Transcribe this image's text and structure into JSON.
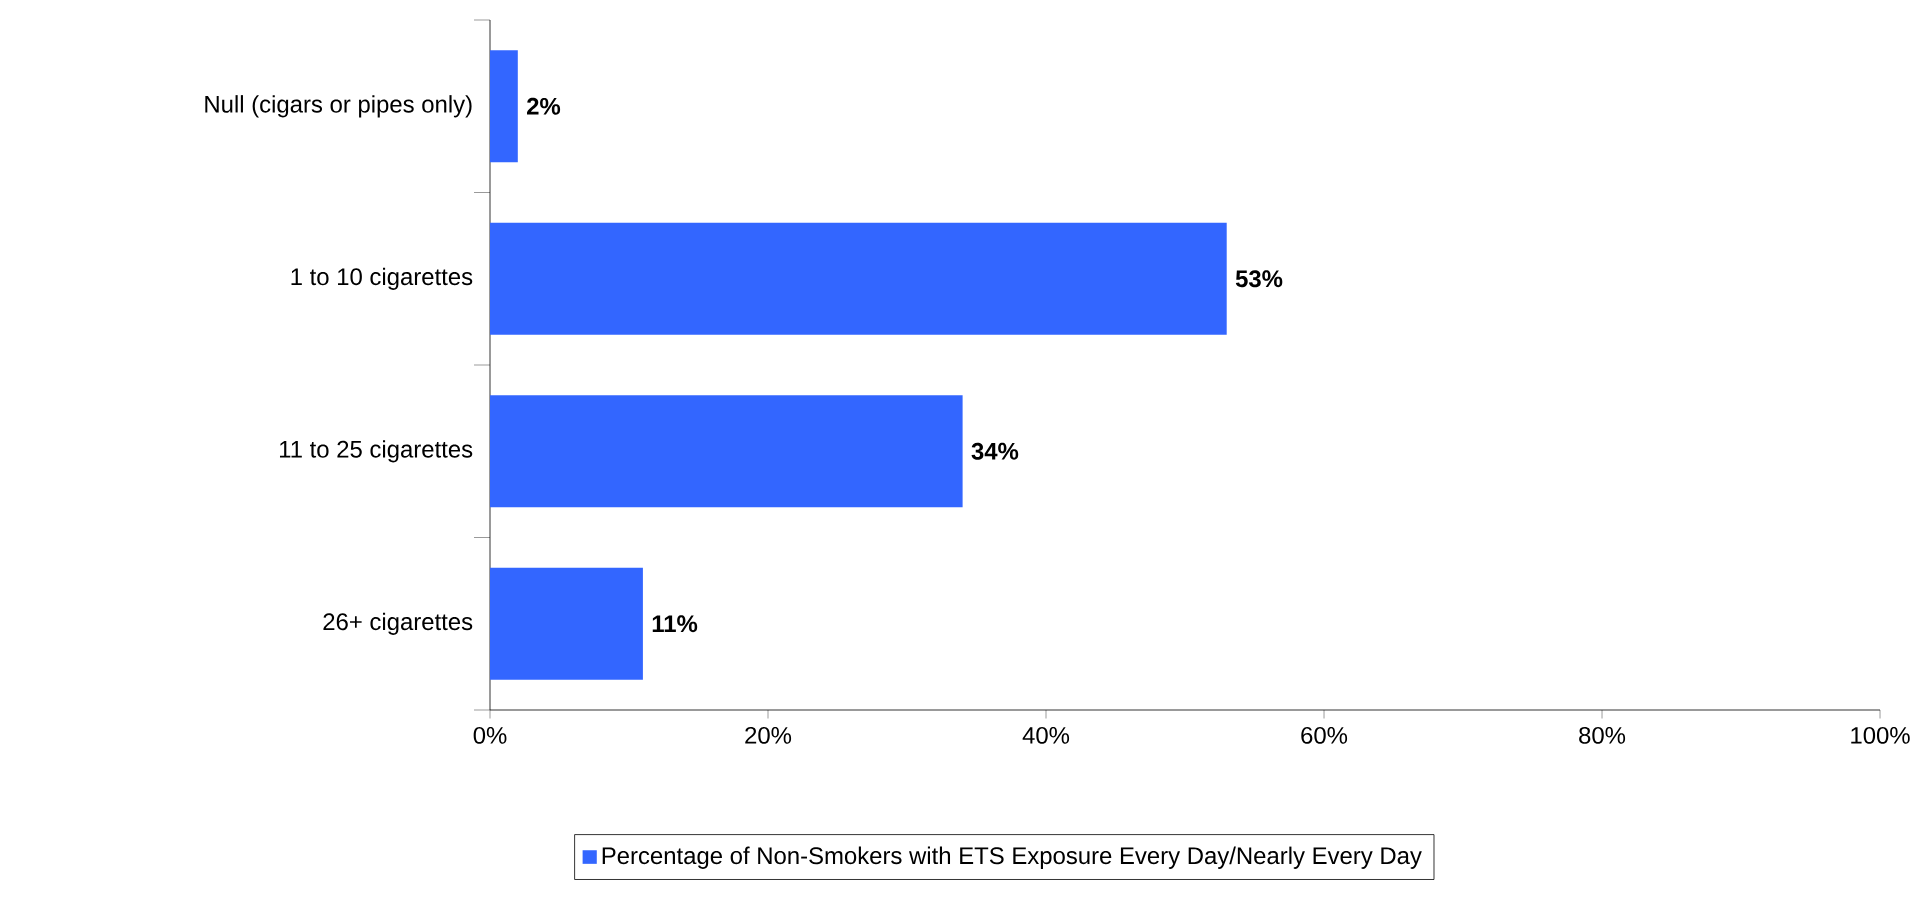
{
  "chart_data": {
    "type": "bar",
    "orientation": "horizontal",
    "categories": [
      "Null (cigars or pipes only)",
      "1 to 10 cigarettes",
      "11 to 25 cigarettes",
      "26+ cigarettes"
    ],
    "series": [
      {
        "name": "Percentage of Non-Smokers with ETS Exposure Every Day/Nearly Every Day",
        "color": "#3366ff",
        "values": [
          2,
          53,
          34,
          11
        ],
        "value_labels": [
          "2%",
          "53%",
          "34%",
          "11%"
        ]
      }
    ],
    "xlim": [
      0,
      100
    ],
    "xticks": [
      {
        "value": 0,
        "label": "0%"
      },
      {
        "value": 20,
        "label": "20%"
      },
      {
        "value": 40,
        "label": "40%"
      },
      {
        "value": 60,
        "label": "60%"
      },
      {
        "value": 80,
        "label": "80%"
      },
      {
        "value": 100,
        "label": "100%"
      }
    ],
    "grid": false,
    "legend": "bottom"
  }
}
